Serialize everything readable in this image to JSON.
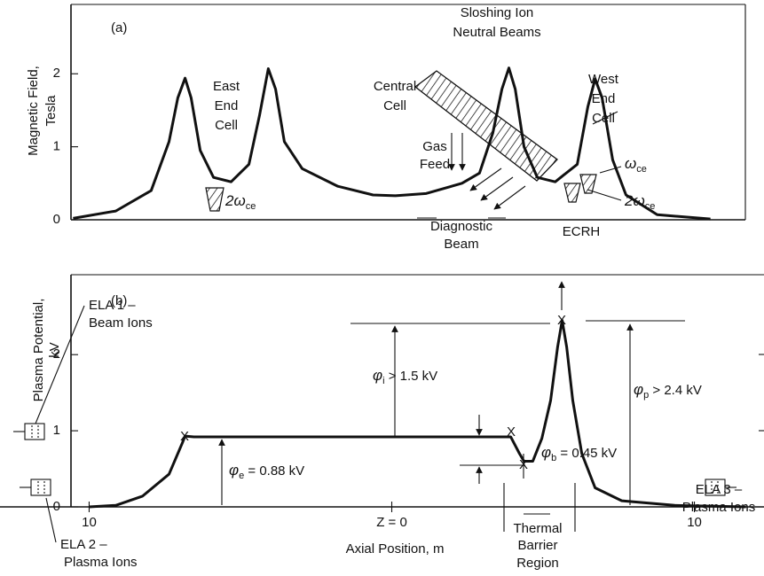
{
  "chart_data": [
    {
      "type": "line",
      "panel_label": "(a)",
      "ylabel": [
        "Magnetic Field,",
        "Tesla"
      ],
      "x": [
        -10.53,
        -9.12,
        -7.95,
        -7.36,
        -7.07,
        -6.83,
        -6.63,
        -6.33,
        -5.89,
        -5.31,
        -4.72,
        -4.37,
        -4.08,
        -3.84,
        -3.55,
        -2.96,
        -1.79,
        -0.62,
        0.12,
        1.14,
        2.32,
        2.9,
        3.34,
        3.64,
        3.87,
        4.08,
        4.37,
        4.81,
        5.4,
        6.13,
        6.48,
        6.72,
        6.95,
        7.3,
        7.74,
        8.77,
        10.53
      ],
      "values": [
        0.02,
        0.12,
        0.4,
        1.07,
        1.67,
        1.94,
        1.67,
        0.95,
        0.58,
        0.52,
        0.76,
        1.43,
        2.07,
        1.79,
        1.07,
        0.7,
        0.46,
        0.34,
        0.33,
        0.36,
        0.5,
        0.64,
        1.19,
        1.79,
        2.08,
        1.79,
        1.0,
        0.58,
        0.52,
        0.76,
        1.55,
        1.93,
        1.67,
        0.82,
        0.34,
        0.07,
        0.01
      ],
      "xlim": [
        -10.6,
        12.3
      ],
      "ylim": [
        0,
        2.95
      ],
      "yticks": [
        0,
        1,
        2
      ],
      "annotations": [
        "East",
        "End",
        "Cell",
        "Central",
        "Cell",
        "Sloshing Ion",
        "Neutral Beams",
        "West",
        "End",
        "Cell",
        "Gas",
        "Feed",
        "Diagnostic",
        "Beam",
        "ECRH",
        {
          "text": "2ω",
          "sub": "ce"
        },
        {
          "text": "ω",
          "sub": "ce"
        },
        {
          "text": "2ω",
          "sub": "ce"
        }
      ]
    },
    {
      "type": "line",
      "panel_label": "(b)",
      "ylabel": [
        "Plasma Potential,",
        "kV"
      ],
      "xlabel": "Axial Position, m",
      "x": [
        -10.0,
        -9.12,
        -8.24,
        -7.36,
        -6.92,
        -6.83,
        -6.54,
        3.78,
        3.93,
        4.22,
        4.37,
        4.66,
        4.96,
        5.25,
        5.48,
        5.63,
        5.78,
        5.98,
        6.28,
        6.72,
        7.6,
        9.35,
        11.7
      ],
      "values": [
        0,
        0.02,
        0.14,
        0.43,
        0.84,
        0.93,
        0.92,
        0.92,
        0.92,
        0.7,
        0.6,
        0.6,
        0.9,
        1.4,
        2.1,
        2.45,
        2.1,
        1.4,
        0.7,
        0.25,
        0.08,
        0.02,
        0
      ],
      "xlim": [
        -10.6,
        12.3
      ],
      "ylim": [
        0,
        3.05
      ],
      "yticks": [
        0,
        1,
        2
      ],
      "xticks": [
        {
          "value": -10,
          "label": "10"
        },
        {
          "value": 0,
          "label": "Z = 0"
        },
        {
          "value": 10,
          "label": "10"
        }
      ],
      "annotations": [
        "ELA 1 –",
        "Beam Ions",
        "ELA 2 –",
        "Plasma Ions",
        "ELA 3 –",
        "Plasma Ions",
        {
          "text": "φ",
          "sub": "i",
          "tail": " > 1.5 kV"
        },
        {
          "text": "φ",
          "sub": "e",
          "tail": " = 0.88 kV"
        },
        {
          "text": "φ",
          "sub": "b",
          "tail": " = 0.45 kV"
        },
        {
          "text": "φ",
          "sub": "p",
          "tail": " > 2.4 kV"
        },
        "Thermal",
        "Barrier",
        "Region"
      ]
    }
  ]
}
